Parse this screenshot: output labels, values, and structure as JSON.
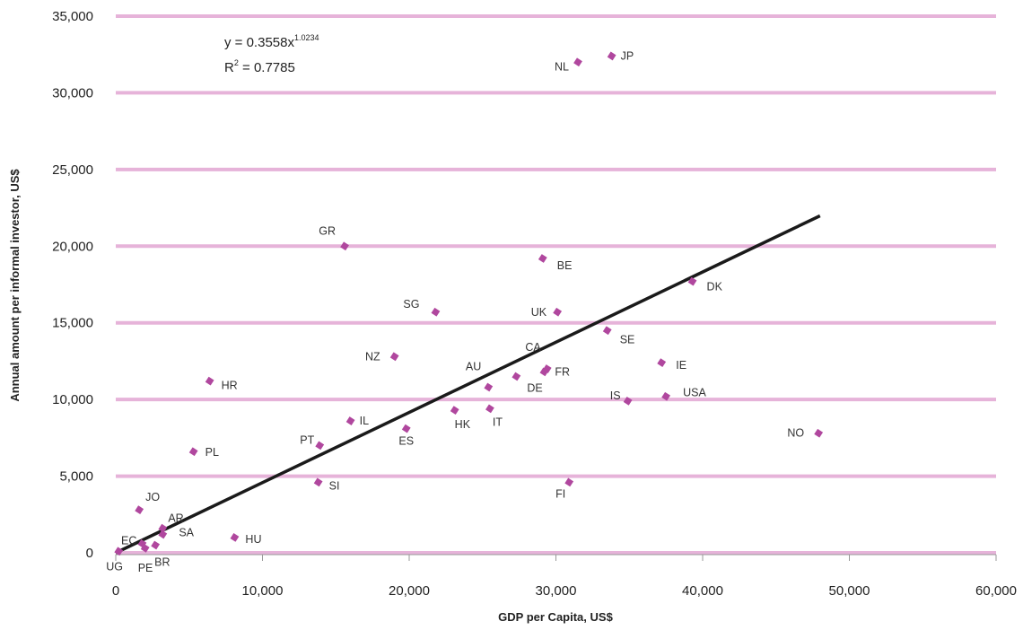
{
  "chart_data": {
    "type": "scatter",
    "xlabel": "GDP per Capita, US$",
    "ylabel": "Annual amount per informal investor, US$",
    "xlim": [
      0,
      60000
    ],
    "ylim": [
      0,
      35000
    ],
    "xticks": [
      "0",
      "10,000",
      "20,000",
      "30,000",
      "40,000",
      "50,000",
      "60,000"
    ],
    "yticks": [
      "0",
      "5,000",
      "10,000",
      "15,000",
      "20,000",
      "25,000",
      "30,000",
      "35,000"
    ],
    "grid": true,
    "marker_color": "#b0479e",
    "grid_color": "#e6b3d9",
    "trendline": {
      "color": "#1a1a1a",
      "equation_base": "y = 0.3558x",
      "equation_exponent": "1.0234",
      "r2_base": "R",
      "r2_exponent": "2",
      "r2_value": " = 0.7785",
      "x_range": [
        0,
        48000
      ]
    },
    "points": [
      {
        "label": "JP",
        "x": 33800,
        "y": 32400
      },
      {
        "label": "NL",
        "x": 31500,
        "y": 32000
      },
      {
        "label": "GR",
        "x": 15600,
        "y": 20000
      },
      {
        "label": "BE",
        "x": 29100,
        "y": 19200
      },
      {
        "label": "DK",
        "x": 39300,
        "y": 17700
      },
      {
        "label": "SG",
        "x": 21800,
        "y": 15700
      },
      {
        "label": "UK",
        "x": 30100,
        "y": 15700
      },
      {
        "label": "SE",
        "x": 33500,
        "y": 14500
      },
      {
        "label": "NZ",
        "x": 19000,
        "y": 12800
      },
      {
        "label": "IE",
        "x": 37200,
        "y": 12400
      },
      {
        "label": "CA",
        "x": 29400,
        "y": 12000
      },
      {
        "label": "FR",
        "x": 29200,
        "y": 11800
      },
      {
        "label": "DE",
        "x": 27300,
        "y": 11500
      },
      {
        "label": "HR",
        "x": 6400,
        "y": 11200
      },
      {
        "label": "AU",
        "x": 25400,
        "y": 10800
      },
      {
        "label": "USA",
        "x": 37500,
        "y": 10200
      },
      {
        "label": "IS",
        "x": 34900,
        "y": 9900
      },
      {
        "label": "IT",
        "x": 25500,
        "y": 9400
      },
      {
        "label": "HK",
        "x": 23100,
        "y": 9300
      },
      {
        "label": "IL",
        "x": 16000,
        "y": 8600
      },
      {
        "label": "ES",
        "x": 19800,
        "y": 8100
      },
      {
        "label": "NO",
        "x": 47900,
        "y": 7800
      },
      {
        "label": "PT",
        "x": 13900,
        "y": 7000
      },
      {
        "label": "PL",
        "x": 5300,
        "y": 6600
      },
      {
        "label": "SI",
        "x": 13800,
        "y": 4600
      },
      {
        "label": "FI",
        "x": 30900,
        "y": 4600
      },
      {
        "label": "JO",
        "x": 1600,
        "y": 2800
      },
      {
        "label": "AR",
        "x": 3200,
        "y": 1600
      },
      {
        "label": "SA",
        "x": 3200,
        "y": 1200
      },
      {
        "label": "EC",
        "x": 1800,
        "y": 600
      },
      {
        "label": "HU",
        "x": 8100,
        "y": 1000
      },
      {
        "label": "BR",
        "x": 2700,
        "y": 500
      },
      {
        "label": "PE",
        "x": 2000,
        "y": 300
      },
      {
        "label": "UG",
        "x": 200,
        "y": 100
      }
    ]
  }
}
